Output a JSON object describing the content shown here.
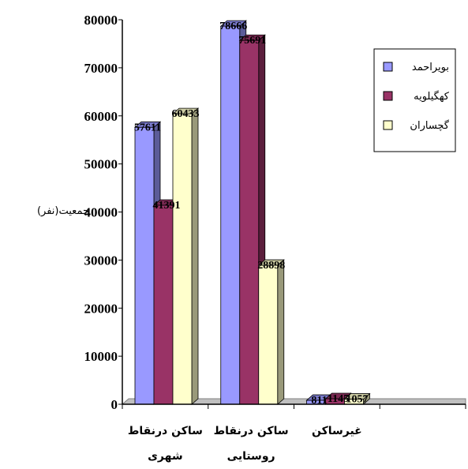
{
  "chart_data": {
    "type": "bar",
    "y_axis_label": "جمعیت(نفر)",
    "ylim": [
      0,
      80000
    ],
    "yticks": [
      "0",
      "10000",
      "20000",
      "30000",
      "40000",
      "50000",
      "60000",
      "70000",
      "80000"
    ],
    "categories": [
      [
        "ساکن درنقاط",
        "شهری"
      ],
      [
        "ساکن درنقاط",
        "روستایی"
      ],
      [
        "غیرساکن"
      ]
    ],
    "series": [
      {
        "name": "بویراحمد",
        "values": [
          57611,
          78666,
          811
        ],
        "labels": [
          "57611",
          "78666",
          "811"
        ],
        "color": "#9999ff"
      },
      {
        "name": "کهگیلویه",
        "values": [
          41391,
          75691,
          1145
        ],
        "labels": [
          "41391",
          "75691",
          "1145"
        ],
        "color": "#993366"
      },
      {
        "name": "گچساران",
        "values": [
          60433,
          28898,
          1057
        ],
        "labels": [
          "60433",
          "28898",
          "1057"
        ],
        "color": "#ffffcc"
      }
    ],
    "legend_position": "top-right",
    "grid": false
  }
}
